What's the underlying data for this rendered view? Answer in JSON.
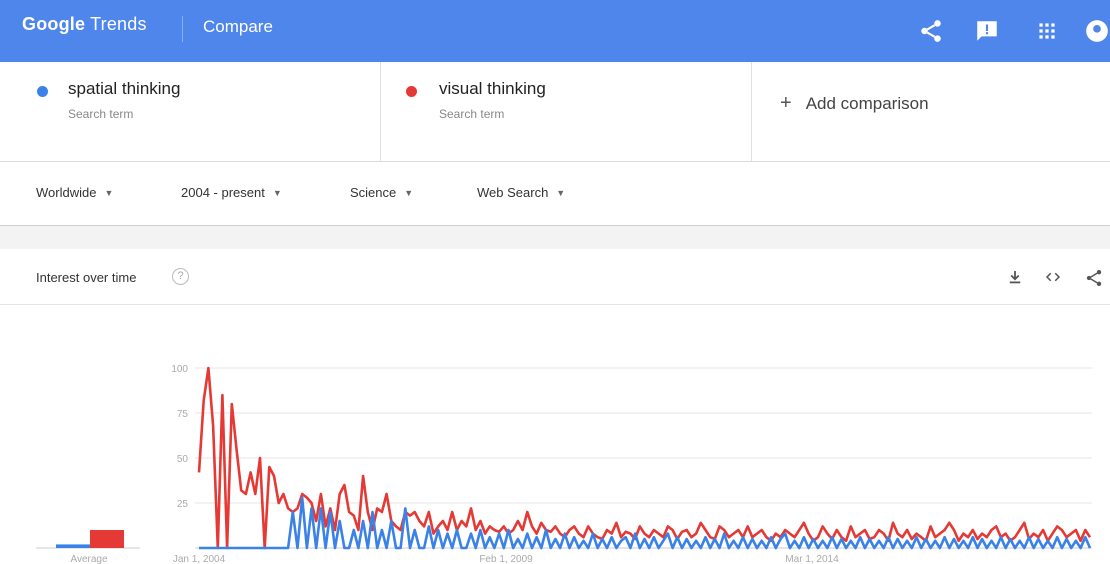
{
  "header": {
    "brand_google": "Google",
    "brand_trends": "Trends",
    "page": "Compare",
    "icons": [
      "share-icon",
      "feedback-icon",
      "apps-grid-icon",
      "account-icon"
    ]
  },
  "terms": [
    {
      "name": "spatial thinking",
      "sub": "Search term",
      "color": "#3b82e8"
    },
    {
      "name": "visual thinking",
      "sub": "Search term",
      "color": "#e53935"
    }
  ],
  "add_comparison": "Add comparison",
  "filters": [
    {
      "label": "Worldwide"
    },
    {
      "label": "2004 - present"
    },
    {
      "label": "Science"
    },
    {
      "label": "Web Search"
    }
  ],
  "card": {
    "title": "Interest over time",
    "help": "?",
    "icons": [
      "download-icon",
      "embed-icon",
      "share-icon"
    ]
  },
  "chart_data": {
    "type": "line",
    "title": "Interest over time",
    "y_ticks": [
      "100",
      "75",
      "50",
      "25"
    ],
    "ylim": [
      0,
      100
    ],
    "x_ticks": [
      "Jan 1, 2004",
      "Feb 1, 2009",
      "Mar 1, 2014"
    ],
    "average_label": "Average",
    "averages": [
      {
        "name": "spatial thinking",
        "value": 2
      },
      {
        "name": "visual thinking",
        "value": 10
      }
    ],
    "series": [
      {
        "name": "visual thinking",
        "color": "#e53935",
        "values": [
          42,
          82,
          100,
          68,
          0,
          85,
          0,
          80,
          55,
          32,
          30,
          42,
          30,
          50,
          0,
          45,
          40,
          25,
          30,
          22,
          20,
          22,
          30,
          28,
          25,
          15,
          30,
          12,
          22,
          10,
          30,
          35,
          20,
          18,
          10,
          40,
          20,
          10,
          22,
          20,
          30,
          15,
          12,
          10,
          20,
          18,
          20,
          15,
          12,
          20,
          8,
          12,
          15,
          10,
          20,
          10,
          15,
          12,
          22,
          10,
          15,
          8,
          12,
          10,
          9,
          12,
          8,
          10,
          15,
          10,
          20,
          12,
          8,
          14,
          10,
          9,
          12,
          8,
          6,
          10,
          12,
          8,
          6,
          12,
          8,
          6,
          5,
          10,
          8,
          14,
          6,
          9,
          8,
          5,
          12,
          8,
          6,
          10,
          8,
          6,
          12,
          10,
          5,
          9,
          10,
          6,
          8,
          14,
          10,
          6,
          5,
          12,
          10,
          6,
          8,
          10,
          6,
          12,
          6,
          8,
          10,
          6,
          4,
          8,
          6,
          10,
          8,
          6,
          10,
          14,
          8,
          4,
          6,
          12,
          8,
          5,
          10,
          6,
          4,
          12,
          6,
          8,
          10,
          5,
          6,
          10,
          8,
          4,
          14,
          8,
          6,
          10,
          5,
          8,
          6,
          4,
          12,
          6,
          8,
          10,
          14,
          10,
          4,
          8,
          6,
          10,
          5,
          8,
          6,
          10,
          12,
          6,
          8,
          4,
          6,
          10,
          14,
          5,
          8,
          6,
          10,
          4,
          8,
          12,
          10,
          6,
          8,
          10,
          4,
          10,
          6
        ]
      },
      {
        "name": "spatial thinking",
        "color": "#3b82e8",
        "values": [
          0,
          0,
          0,
          0,
          0,
          0,
          0,
          0,
          0,
          0,
          0,
          0,
          0,
          0,
          0,
          0,
          0,
          0,
          0,
          0,
          20,
          0,
          28,
          0,
          22,
          0,
          22,
          0,
          20,
          0,
          15,
          0,
          0,
          10,
          0,
          15,
          0,
          20,
          0,
          10,
          0,
          15,
          0,
          0,
          22,
          0,
          10,
          0,
          0,
          12,
          0,
          10,
          0,
          8,
          0,
          10,
          0,
          0,
          8,
          0,
          10,
          0,
          6,
          0,
          8,
          0,
          10,
          0,
          5,
          0,
          8,
          0,
          6,
          0,
          10,
          0,
          5,
          0,
          8,
          0,
          6,
          0,
          4,
          0,
          8,
          0,
          5,
          0,
          6,
          0,
          4,
          6,
          0,
          8,
          0,
          5,
          0,
          6,
          0,
          4,
          8,
          0,
          6,
          0,
          5,
          0,
          4,
          0,
          6,
          0,
          5,
          0,
          8,
          0,
          4,
          0,
          6,
          0,
          5,
          0,
          4,
          0,
          6,
          0,
          5,
          8,
          0,
          4,
          0,
          6,
          0,
          5,
          0,
          4,
          0,
          6,
          0,
          5,
          0,
          4,
          0,
          6,
          0,
          5,
          0,
          4,
          0,
          6,
          0,
          5,
          0,
          4,
          0,
          6,
          0,
          5,
          0,
          4,
          0,
          6,
          0,
          5,
          0,
          4,
          0,
          6,
          0,
          5,
          0,
          4,
          0,
          6,
          0,
          5,
          0,
          4,
          0,
          6,
          0,
          5,
          0,
          4,
          0,
          6,
          0,
          5,
          0,
          4,
          0,
          6,
          0
        ]
      }
    ]
  }
}
